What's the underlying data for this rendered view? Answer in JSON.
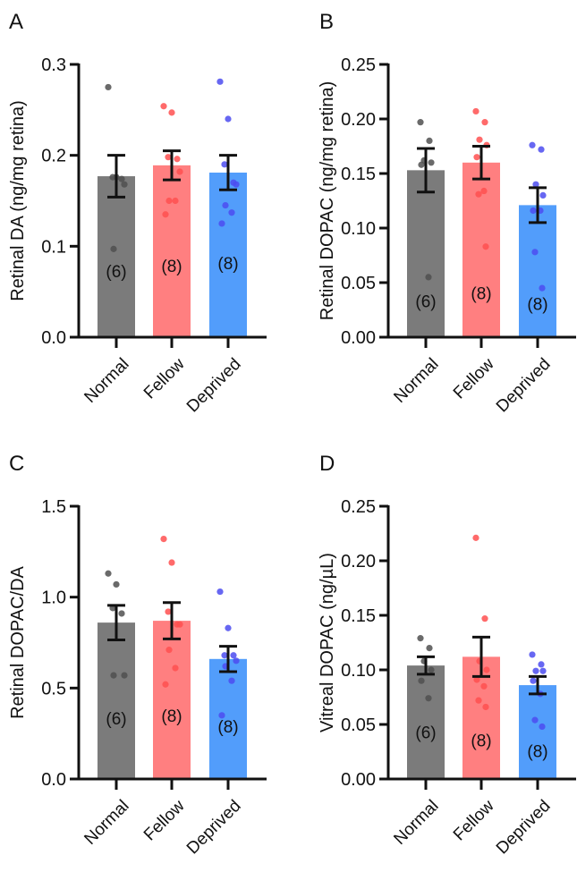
{
  "colors": {
    "Normal": {
      "bar": "#7b7b7b",
      "dot": "#505050"
    },
    "Fellow": {
      "bar": "#ff7f80",
      "dot": "#ff5050"
    },
    "Deprived": {
      "bar": "#529dfb",
      "dot": "#4c4cf0"
    },
    "axis": "#111111"
  },
  "chart_data": [
    {
      "panel": "A",
      "type": "bar",
      "categories": [
        "Normal",
        "Fellow",
        "Deprived"
      ],
      "ylabel": "Retinal DA (ng/mg retina)",
      "ylim": [
        0,
        0.3
      ],
      "yticks": [
        0.0,
        0.1,
        0.2,
        0.3
      ],
      "ytick_labels": [
        "0.0",
        "0.1",
        "0.2",
        "0.3"
      ],
      "means": [
        0.177,
        0.189,
        0.181
      ],
      "sem": [
        0.023,
        0.016,
        0.019
      ],
      "n_labels": [
        "(6)",
        "(8)",
        "(8)"
      ],
      "points": [
        [
          0.275,
          0.176,
          0.176,
          0.174,
          0.168,
          0.097
        ],
        [
          0.254,
          0.247,
          0.198,
          0.196,
          0.182,
          0.15,
          0.15,
          0.135
        ],
        [
          0.281,
          0.24,
          0.19,
          0.17,
          0.168,
          0.145,
          0.137,
          0.125
        ]
      ]
    },
    {
      "panel": "B",
      "type": "bar",
      "categories": [
        "Normal",
        "Fellow",
        "Deprived"
      ],
      "ylabel": "Retinal DOPAC (ng/mg retina)",
      "ylim": [
        0,
        0.25
      ],
      "yticks": [
        0,
        0.05,
        0.1,
        0.15,
        0.2,
        0.25
      ],
      "ytick_labels": [
        "0.00",
        "0.05",
        "0.10",
        "0.15",
        "0.20",
        "0.25"
      ],
      "means": [
        0.153,
        0.16,
        0.121
      ],
      "sem": [
        0.02,
        0.015,
        0.016
      ],
      "n_labels": [
        "(6)",
        "(8)",
        "(8)"
      ],
      "points": [
        [
          0.197,
          0.18,
          0.162,
          0.16,
          0.158,
          0.055
        ],
        [
          0.207,
          0.197,
          0.181,
          0.176,
          0.165,
          0.134,
          0.131,
          0.083
        ],
        [
          0.176,
          0.172,
          0.14,
          0.13,
          0.116,
          0.116,
          0.078,
          0.045
        ]
      ]
    },
    {
      "panel": "C",
      "type": "bar",
      "categories": [
        "Normal",
        "Fellow",
        "Deprived"
      ],
      "ylabel": "Retinal DOPAC/DA",
      "ylim": [
        0,
        1.5
      ],
      "yticks": [
        0,
        0.5,
        1.0,
        1.5
      ],
      "ytick_labels": [
        "0.0",
        "0.5",
        "1.0",
        "1.5"
      ],
      "means": [
        0.86,
        0.87,
        0.66
      ],
      "sem": [
        0.095,
        0.1,
        0.07
      ],
      "n_labels": [
        "(6)",
        "(8)",
        "(8)"
      ],
      "points": [
        [
          1.13,
          1.07,
          0.94,
          0.91,
          0.57,
          0.57
        ],
        [
          1.32,
          1.19,
          0.92,
          0.85,
          0.85,
          0.71,
          0.61,
          0.52
        ],
        [
          1.03,
          0.83,
          0.68,
          0.68,
          0.65,
          0.62,
          0.54,
          0.35
        ]
      ]
    },
    {
      "panel": "D",
      "type": "bar",
      "categories": [
        "Normal",
        "Fellow",
        "Deprived"
      ],
      "ylabel": "Vitreal DOPAC (ng/µL)",
      "ylim": [
        0,
        0.25
      ],
      "yticks": [
        0,
        0.05,
        0.1,
        0.15,
        0.2,
        0.25
      ],
      "ytick_labels": [
        "0.00",
        "0.05",
        "0.10",
        "0.15",
        "0.20",
        "0.25"
      ],
      "means": [
        0.104,
        0.112,
        0.086
      ],
      "sem": [
        0.008,
        0.018,
        0.008
      ],
      "n_labels": [
        "(6)",
        "(8)",
        "(8)"
      ],
      "points": [
        [
          0.129,
          0.12,
          0.108,
          0.1,
          0.09,
          0.074
        ],
        [
          0.221,
          0.147,
          0.108,
          0.1,
          0.091,
          0.085,
          0.072,
          0.066
        ],
        [
          0.114,
          0.105,
          0.099,
          0.099,
          0.09,
          0.078,
          0.054,
          0.048
        ]
      ]
    }
  ]
}
